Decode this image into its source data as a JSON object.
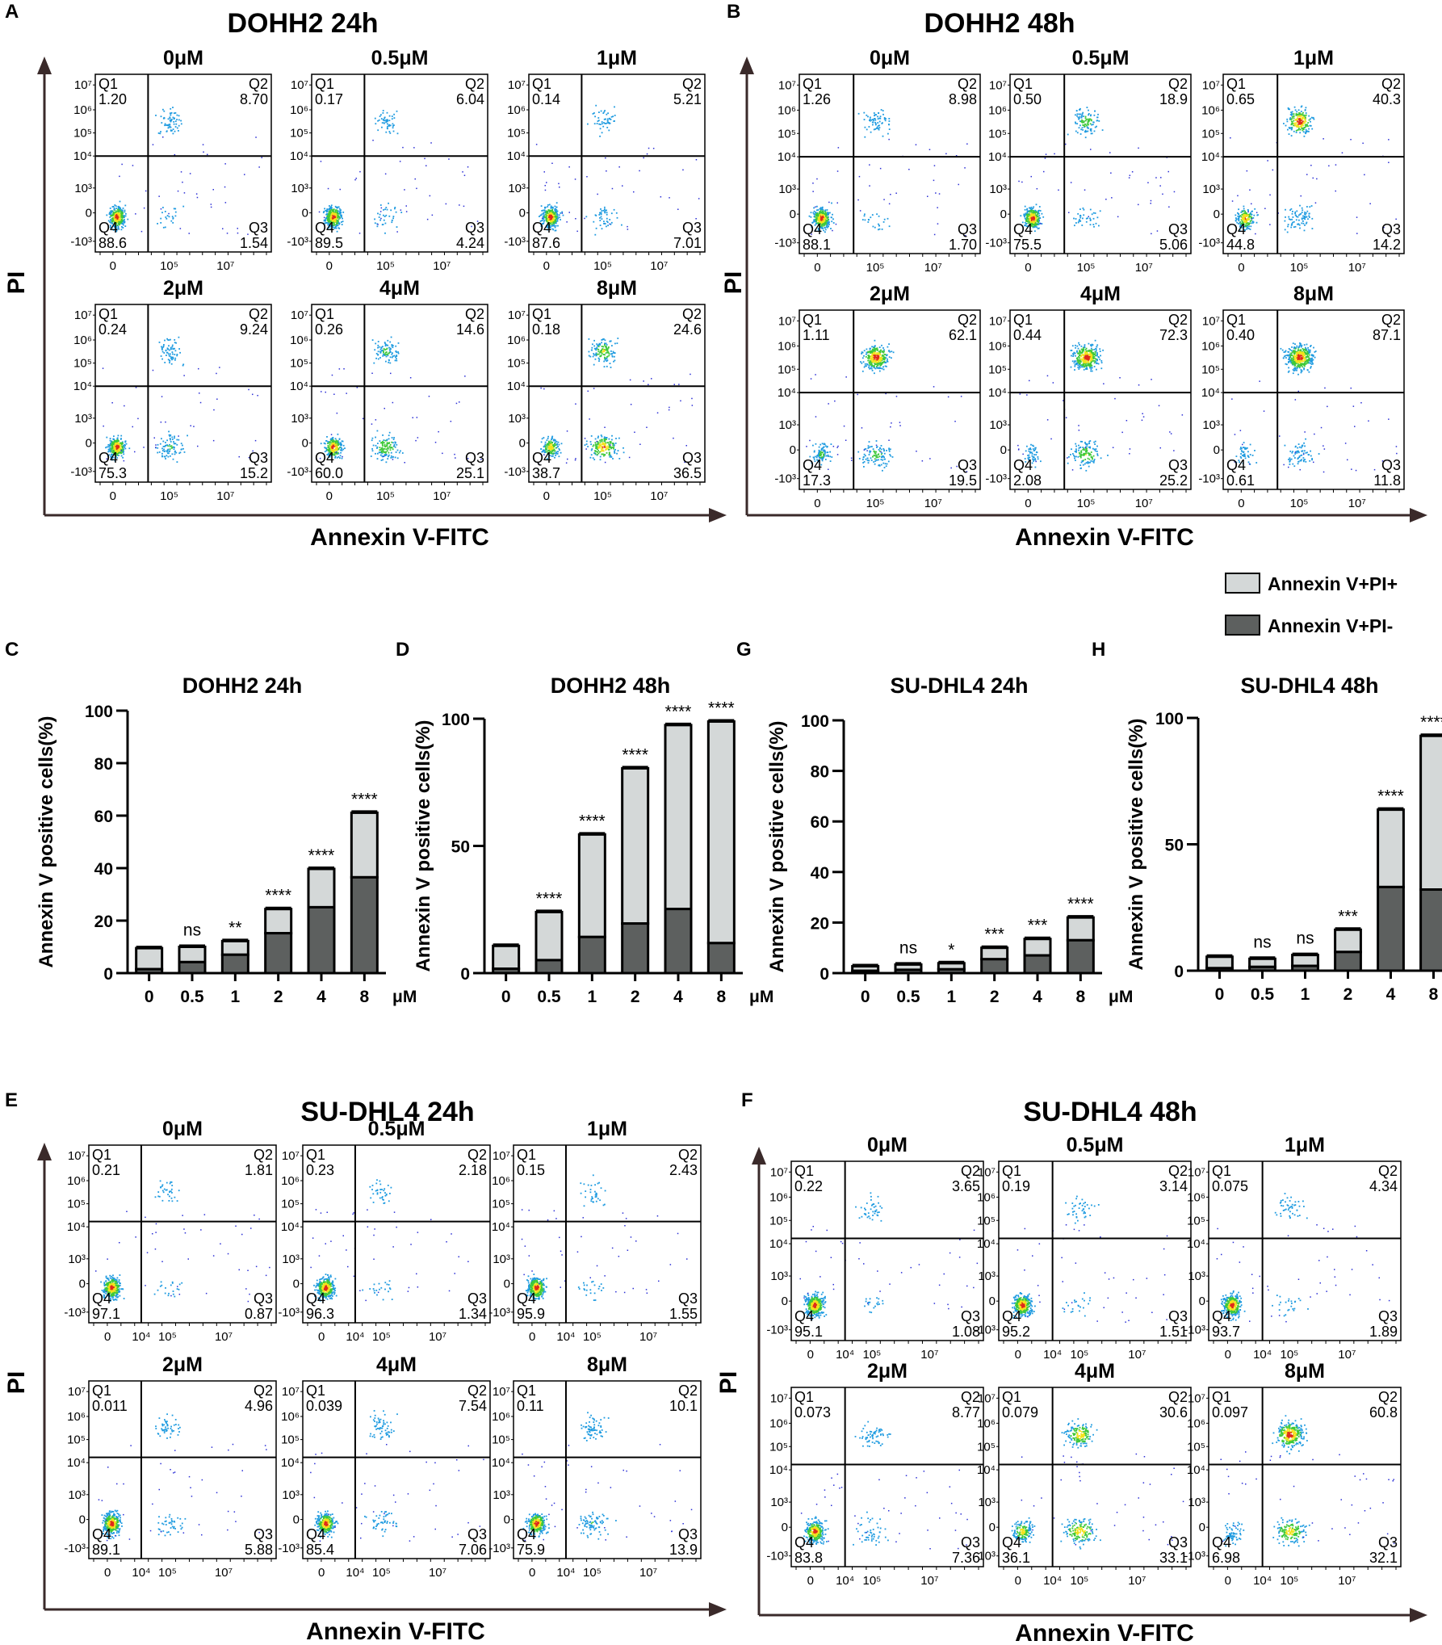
{
  "legend": {
    "items": [
      {
        "label": "Annexin V+PI+",
        "color": "#d4d8d8"
      },
      {
        "label": "Annexin V+PI-",
        "color": "#5d605f"
      }
    ]
  },
  "flow_figures": [
    {
      "id": "A",
      "title": "DOHH2 24h",
      "xlabel": "Annexin V-FITC",
      "ylabel": "PI",
      "y_ticks": [
        "10⁷",
        "10⁶",
        "10⁵",
        "10⁴",
        "10³",
        "0",
        "-10³"
      ],
      "x_ticks": [
        "0",
        "10⁵",
        "10⁷"
      ],
      "panels": [
        {
          "dose": "0μM",
          "Q1": "1.20",
          "Q2": "8.70",
          "Q3": "1.54",
          "Q4": "88.6"
        },
        {
          "dose": "0.5μM",
          "Q1": "0.17",
          "Q2": "6.04",
          "Q3": "4.24",
          "Q4": "89.5"
        },
        {
          "dose": "1μM",
          "Q1": "0.14",
          "Q2": "5.21",
          "Q3": "7.01",
          "Q4": "87.6"
        },
        {
          "dose": "2μM",
          "Q1": "0.24",
          "Q2": "9.24",
          "Q3": "15.2",
          "Q4": "75.3"
        },
        {
          "dose": "4μM",
          "Q1": "0.26",
          "Q2": "14.6",
          "Q3": "25.1",
          "Q4": "60.0"
        },
        {
          "dose": "8μM",
          "Q1": "0.18",
          "Q2": "24.6",
          "Q3": "36.5",
          "Q4": "38.7"
        }
      ]
    },
    {
      "id": "B",
      "title": "DOHH2 48h",
      "xlabel": "Annexin V-FITC",
      "ylabel": "PI",
      "y_ticks": [
        "10⁷",
        "10⁶",
        "10⁵",
        "10⁴",
        "10³",
        "0",
        "-10³"
      ],
      "x_ticks": [
        "0",
        "10⁵",
        "10⁷"
      ],
      "panels": [
        {
          "dose": "0μM",
          "Q1": "1.26",
          "Q2": "8.98",
          "Q3": "1.70",
          "Q4": "88.1"
        },
        {
          "dose": "0.5μM",
          "Q1": "0.50",
          "Q2": "18.9",
          "Q3": "5.06",
          "Q4": "75.5"
        },
        {
          "dose": "1μM",
          "Q1": "0.65",
          "Q2": "40.3",
          "Q3": "14.2",
          "Q4": "44.8"
        },
        {
          "dose": "2μM",
          "Q1": "1.11",
          "Q2": "62.1",
          "Q3": "19.5",
          "Q4": "17.3"
        },
        {
          "dose": "4μM",
          "Q1": "0.44",
          "Q2": "72.3",
          "Q3": "25.2",
          "Q4": "2.08"
        },
        {
          "dose": "8μM",
          "Q1": "0.40",
          "Q2": "87.1",
          "Q3": "11.8",
          "Q4": "0.61"
        }
      ]
    },
    {
      "id": "E",
      "title": "SU-DHL4 24h",
      "xlabel": "Annexin V-FITC",
      "ylabel": "PI",
      "y_ticks": [
        "10⁷",
        "10⁶",
        "10⁵",
        "10⁴",
        "10³",
        "0",
        "-10³"
      ],
      "x_ticks": [
        "0",
        "10⁴",
        "10⁵",
        "10⁷"
      ],
      "panels": [
        {
          "dose": "0μM",
          "Q1": "0.21",
          "Q2": "1.81",
          "Q3": "0.87",
          "Q4": "97.1"
        },
        {
          "dose": "0.5μM",
          "Q1": "0.23",
          "Q2": "2.18",
          "Q3": "1.34",
          "Q4": "96.3"
        },
        {
          "dose": "1μM",
          "Q1": "0.15",
          "Q2": "2.43",
          "Q3": "1.55",
          "Q4": "95.9"
        },
        {
          "dose": "2μM",
          "Q1": "0.011",
          "Q2": "4.96",
          "Q3": "5.88",
          "Q4": "89.1"
        },
        {
          "dose": "4μM",
          "Q1": "0.039",
          "Q2": "7.54",
          "Q3": "7.06",
          "Q4": "85.4"
        },
        {
          "dose": "8μM",
          "Q1": "0.11",
          "Q2": "10.1",
          "Q3": "13.9",
          "Q4": "75.9"
        }
      ]
    },
    {
      "id": "F",
      "title": "SU-DHL4 48h",
      "xlabel": "Annexin V-FITC",
      "ylabel": "PI",
      "y_ticks": [
        "10⁷",
        "10⁶",
        "10⁵",
        "10⁴",
        "10³",
        "0",
        "-10³"
      ],
      "x_ticks": [
        "0",
        "10⁴",
        "10⁵",
        "10⁷"
      ],
      "panels": [
        {
          "dose": "0μM",
          "Q1": "0.22",
          "Q2": "3.65",
          "Q3": "1.08",
          "Q4": "95.1"
        },
        {
          "dose": "0.5μM",
          "Q1": "0.19",
          "Q2": "3.14",
          "Q3": "1.51",
          "Q4": "95.2"
        },
        {
          "dose": "1μM",
          "Q1": "0.075",
          "Q2": "4.34",
          "Q3": "1.89",
          "Q4": "93.7"
        },
        {
          "dose": "2μM",
          "Q1": "0.073",
          "Q2": "8.77",
          "Q3": "7.36",
          "Q4": "83.8"
        },
        {
          "dose": "4μM",
          "Q1": "0.079",
          "Q2": "30.6",
          "Q3": "33.1",
          "Q4": "36.1"
        },
        {
          "dose": "8μM",
          "Q1": "0.097",
          "Q2": "60.8",
          "Q3": "32.1",
          "Q4": "6.98"
        }
      ]
    }
  ],
  "chart_data": [
    {
      "id": "C",
      "type": "bar",
      "stacked": true,
      "title": "DOHH2 24h",
      "ylabel": "Annexin V positive cells(%)",
      "xunit": "μM",
      "categories": [
        "0",
        "0.5",
        "1",
        "2",
        "4",
        "8"
      ],
      "ylim": [
        0,
        100
      ],
      "yticks": [
        0,
        20,
        40,
        60,
        80,
        100
      ],
      "series": [
        {
          "name": "Annexin V+PI-",
          "values": [
            1.5,
            4.2,
            7,
            15.2,
            25.1,
            36.5
          ]
        },
        {
          "name": "Annexin V+PI+",
          "values": [
            8,
            5.8,
            5.2,
            9.2,
            14.6,
            24.6
          ]
        }
      ],
      "significance": [
        "",
        "ns",
        "**",
        "****",
        "****",
        "****"
      ]
    },
    {
      "id": "D",
      "type": "bar",
      "stacked": true,
      "title": "DOHH2 48h",
      "ylabel": "Annexin V positive cells(%)",
      "xunit": "μM",
      "categories": [
        "0",
        "0.5",
        "1",
        "2",
        "4",
        "8"
      ],
      "ylim": [
        0,
        100
      ],
      "yticks": [
        0,
        50,
        100
      ],
      "series": [
        {
          "name": "Annexin V+PI-",
          "values": [
            1.7,
            5.1,
            14.2,
            19.5,
            25.2,
            11.8
          ]
        },
        {
          "name": "Annexin V+PI+",
          "values": [
            9,
            18.9,
            40.3,
            61,
            72.3,
            87.1
          ]
        }
      ],
      "significance": [
        "",
        "****",
        "****",
        "****",
        "****",
        "****"
      ]
    },
    {
      "id": "G",
      "type": "bar",
      "stacked": true,
      "title": "SU-DHL4 24h",
      "ylabel": "Annexin V positive cells(%)",
      "xunit": "μM",
      "categories": [
        "0",
        "0.5",
        "1",
        "2",
        "4",
        "8"
      ],
      "ylim": [
        0,
        100
      ],
      "yticks": [
        0,
        20,
        40,
        60,
        80,
        100
      ],
      "series": [
        {
          "name": "Annexin V+PI-",
          "values": [
            0.9,
            1.3,
            1.5,
            5.5,
            7,
            13
          ]
        },
        {
          "name": "Annexin V+PI+",
          "values": [
            1.8,
            2.1,
            2.4,
            4.5,
            6.5,
            9
          ]
        }
      ],
      "significance": [
        "",
        "ns",
        "*",
        "***",
        "***",
        "****"
      ]
    },
    {
      "id": "H",
      "type": "bar",
      "stacked": true,
      "title": "SU-DHL4 48h",
      "ylabel": "Annexin V positive cells(%)",
      "xunit": "μM",
      "categories": [
        "0",
        "0.5",
        "1",
        "2",
        "4",
        "8"
      ],
      "ylim": [
        0,
        100
      ],
      "yticks": [
        0,
        50,
        100
      ],
      "series": [
        {
          "name": "Annexin V+PI-",
          "values": [
            1,
            1.5,
            1.9,
            7.4,
            33.1,
            32.1
          ]
        },
        {
          "name": "Annexin V+PI+",
          "values": [
            4.5,
            3.2,
            4.3,
            8.8,
            30.6,
            60.8
          ]
        }
      ],
      "significance": [
        "",
        "ns",
        "ns",
        "***",
        "****",
        "****"
      ]
    }
  ]
}
